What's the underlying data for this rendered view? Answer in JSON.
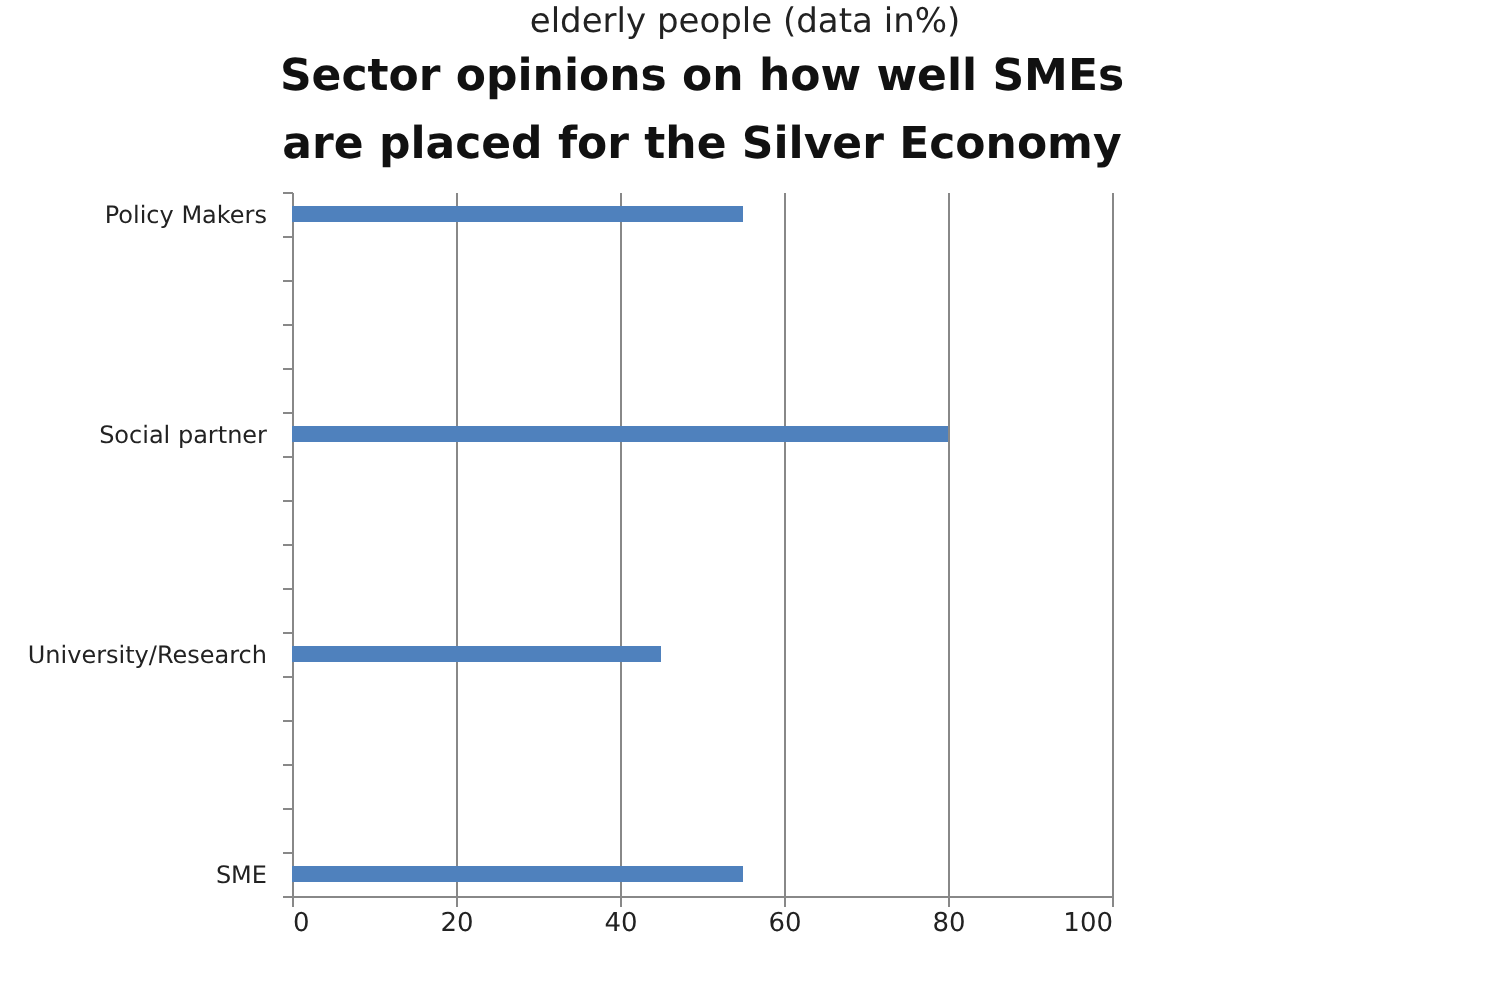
{
  "chart_data": {
    "type": "bar",
    "orientation": "horizontal",
    "title": "Sector opinions on how well SMEs are placed for the Silver Economy",
    "annotations": [
      "elderly people (data in%)"
    ],
    "categories": [
      "Policy Makers",
      null,
      null,
      null,
      null,
      "Social partner",
      null,
      null,
      null,
      null,
      "University/Research",
      null,
      null,
      null,
      null,
      "SME"
    ],
    "values": [
      55,
      null,
      null,
      null,
      null,
      80,
      null,
      null,
      null,
      null,
      45,
      null,
      null,
      null,
      null,
      55
    ],
    "color": "#4f81bd",
    "xlim": [
      0,
      100
    ],
    "xticks": [
      0,
      20,
      40,
      60,
      80,
      100
    ],
    "grid": "x"
  }
}
